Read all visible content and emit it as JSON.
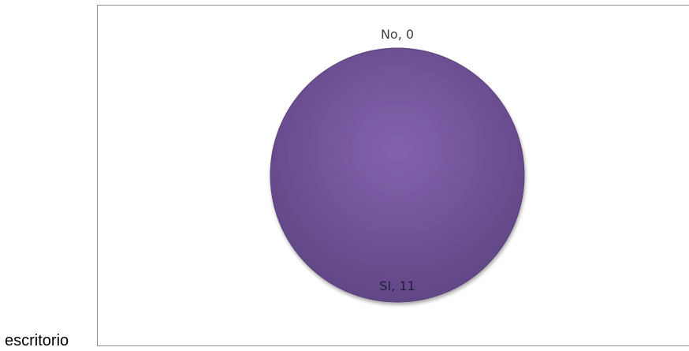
{
  "side_text": "escritorio",
  "chart_data": {
    "type": "pie",
    "categories": [
      "No",
      "SI"
    ],
    "values": [
      0,
      11
    ],
    "data_labels": [
      "No, 0",
      "SI, 11"
    ],
    "colors": {
      "SI": "#7a5a9e",
      "No": "#4f81bd"
    },
    "legend": "none"
  }
}
